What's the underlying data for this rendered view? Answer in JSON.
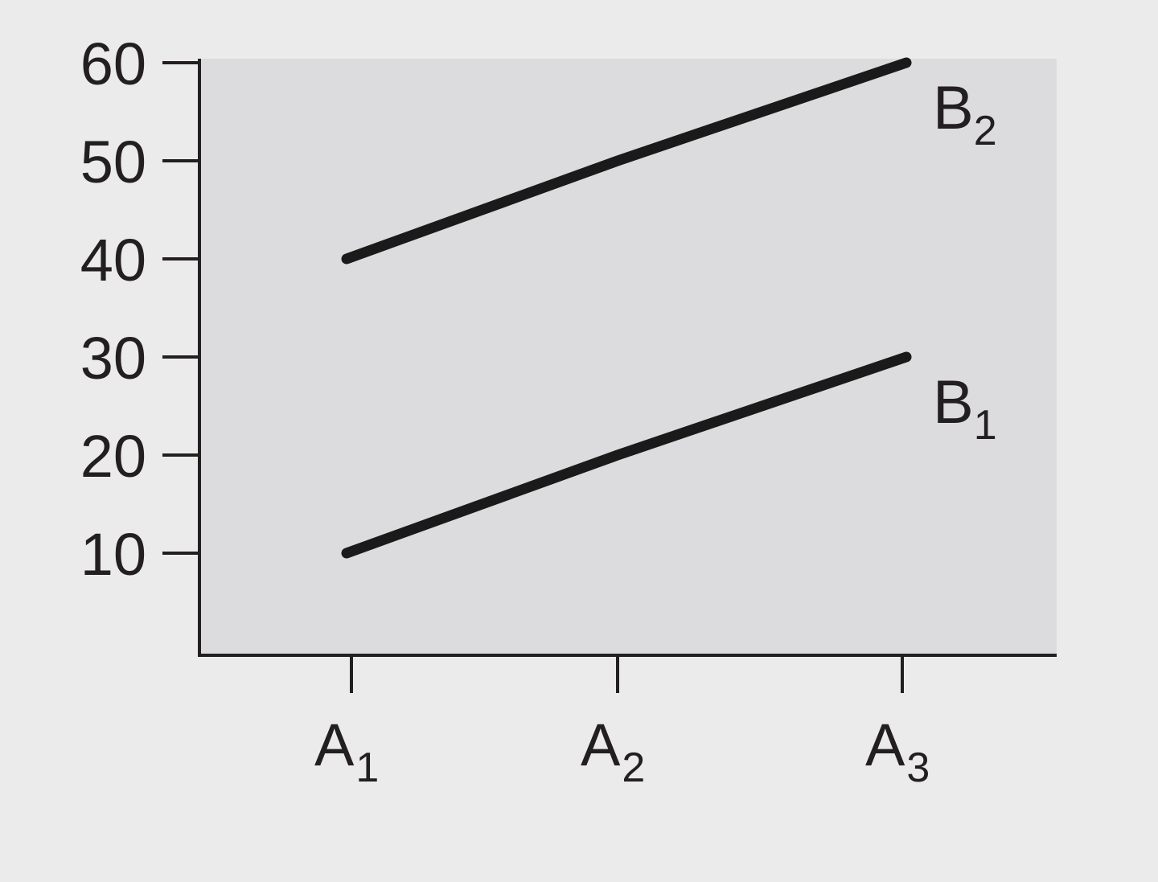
{
  "chart_data": {
    "type": "line",
    "x": [
      {
        "base": "A",
        "sub": "1"
      },
      {
        "base": "A",
        "sub": "2"
      },
      {
        "base": "A",
        "sub": "3"
      }
    ],
    "y_ticks": [
      "60",
      "50",
      "40",
      "30",
      "20",
      "10"
    ],
    "ylim": [
      0,
      60
    ],
    "grid": false,
    "series": [
      {
        "name": {
          "base": "B",
          "sub": "2"
        },
        "values": [
          40,
          50,
          60
        ]
      },
      {
        "name": {
          "base": "B",
          "sub": "1"
        },
        "values": [
          10,
          20,
          30
        ]
      }
    ],
    "colors": {
      "plot_background": "#dcdcde",
      "page_background": "#ebebeb",
      "line": "#1a1a1a",
      "axis": "#231f20"
    }
  }
}
